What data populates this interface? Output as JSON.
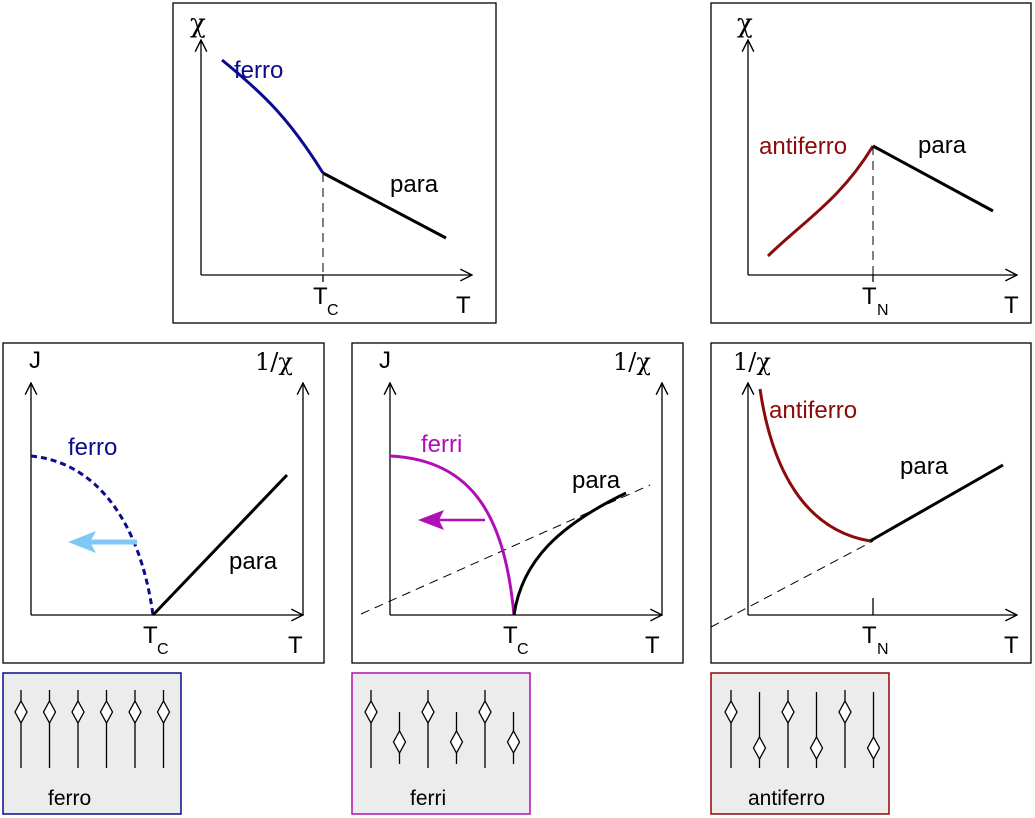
{
  "colors": {
    "ferro": "#0b0b8c",
    "ferri": "#b10fb6",
    "antiferro": "#8b0a0a",
    "arrow_ferro": "#7fc7f5",
    "box_fill": "#ececec",
    "black": "#000000"
  },
  "panels": {
    "ferro_chi": {
      "y_axis_label": "χ",
      "x_axis_label": "T",
      "temp_label": "T",
      "temp_sub": "C",
      "curve_label": "ferro",
      "para_label": "para"
    },
    "antiferro_chi": {
      "y_axis_label": "χ",
      "x_axis_label": "T",
      "temp_label": "T",
      "temp_sub": "N",
      "curve_label": "antiferro",
      "para_label": "para"
    },
    "ferro_inv": {
      "left_axis_label": "J",
      "right_axis_label": "1/χ",
      "x_axis_label": "T",
      "temp_label": "T",
      "temp_sub": "C",
      "curve_label": "ferro",
      "para_label": "para"
    },
    "ferri_inv": {
      "left_axis_label": "J",
      "right_axis_label": "1/χ",
      "x_axis_label": "T",
      "temp_label": "T",
      "temp_sub": "C",
      "curve_label": "ferri",
      "para_label": "para"
    },
    "antiferro_inv": {
      "y_axis_label": "1/χ",
      "x_axis_label": "T",
      "temp_label": "T",
      "temp_sub": "N",
      "curve_label": "antiferro",
      "para_label": "para"
    }
  },
  "spin_boxes": {
    "ferro": {
      "label": "ferro",
      "spins": [
        "up",
        "up",
        "up",
        "up",
        "up",
        "up"
      ]
    },
    "ferri": {
      "label": "ferri",
      "spins": [
        "up",
        "down",
        "up",
        "down",
        "up",
        "down"
      ]
    },
    "antiferro": {
      "label": "antiferro",
      "spins": [
        "up",
        "down",
        "up",
        "down",
        "up",
        "down"
      ]
    }
  }
}
